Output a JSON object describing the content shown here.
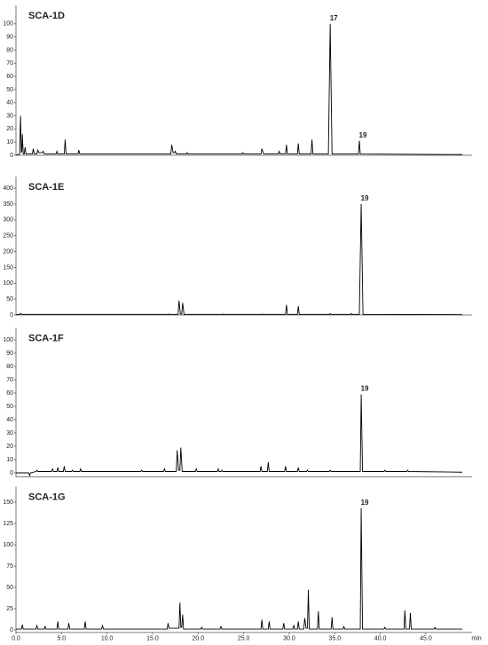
{
  "chart_data": [
    {
      "type": "line",
      "title": "SCA-1D",
      "color": "#000000",
      "xlim": [
        0,
        49
      ],
      "ylim": [
        0,
        110
      ],
      "yticks": [
        0,
        10,
        20,
        30,
        40,
        50,
        60,
        70,
        80,
        90,
        100
      ],
      "x": [
        0,
        0.4,
        0.5,
        0.6,
        0.65,
        0.7,
        0.8,
        0.9,
        1.0,
        1.1,
        1.8,
        1.9,
        2.0,
        2.3,
        2.4,
        2.5,
        2.9,
        3.0,
        3.1,
        4.4,
        4.5,
        4.6,
        5.3,
        5.4,
        5.5,
        6.8,
        6.9,
        7.0,
        17.0,
        17.1,
        17.25,
        17.4,
        17.5,
        17.6,
        18.7,
        18.8,
        18.9,
        24.8,
        24.9,
        25.0,
        26.9,
        27.0,
        27.2,
        28.8,
        28.9,
        29.0,
        29.6,
        29.7,
        29.8,
        30.9,
        31.0,
        31.1,
        32.4,
        32.5,
        32.6,
        34.3,
        34.5,
        34.7,
        37.6,
        37.7,
        37.8,
        49
      ],
      "values": [
        0,
        1,
        30,
        2,
        3,
        16,
        1,
        1,
        6,
        1,
        1,
        5,
        1,
        1,
        4,
        2,
        2,
        3,
        1,
        1,
        3,
        1,
        1,
        12,
        1,
        1,
        4,
        1,
        1,
        8,
        2,
        2,
        3,
        1,
        1,
        2,
        1,
        1,
        2,
        1,
        1,
        5,
        1,
        1,
        3,
        1,
        1,
        8,
        1,
        1,
        9,
        1,
        1,
        12,
        1,
        1,
        100,
        1,
        1,
        11,
        1,
        0.5
      ],
      "annotations": [
        {
          "text": "17",
          "x": 34.5,
          "y": 100
        },
        {
          "text": "19",
          "x": 37.7,
          "y": 11
        }
      ]
    },
    {
      "type": "line",
      "title": "SCA-1E",
      "color": "#000000",
      "xlim": [
        0,
        49
      ],
      "ylim": [
        0,
        420
      ],
      "yticks": [
        0,
        50,
        100,
        150,
        200,
        250,
        300,
        350,
        400
      ],
      "x": [
        0,
        0.4,
        0.5,
        0.6,
        16.7,
        16.8,
        16.9,
        17.8,
        17.9,
        18.05,
        18.2,
        18.3,
        18.45,
        22.7,
        22.8,
        22.9,
        26.9,
        27.0,
        27.1,
        29.6,
        29.7,
        29.8,
        30.9,
        31.0,
        31.1,
        34.4,
        34.5,
        34.6,
        36.7,
        36.8,
        36.9,
        37.7,
        37.9,
        38.1,
        49
      ],
      "values": [
        1,
        2,
        5,
        2,
        2,
        3,
        2,
        2,
        45,
        3,
        3,
        38,
        2,
        2,
        3,
        2,
        2,
        3,
        2,
        2,
        32,
        2,
        2,
        28,
        2,
        2,
        4,
        2,
        2,
        4,
        2,
        2,
        350,
        2,
        1
      ],
      "annotations": [
        {
          "text": "19",
          "x": 37.9,
          "y": 350
        }
      ]
    },
    {
      "type": "line",
      "title": "SCA-1F",
      "color": "#000000",
      "xlim": [
        0,
        49
      ],
      "ylim": [
        -3,
        105
      ],
      "yticks": [
        0,
        10,
        20,
        30,
        40,
        50,
        60,
        70,
        80,
        90,
        100
      ],
      "x": [
        0,
        1.4,
        1.5,
        1.6,
        2.2,
        2.3,
        2.4,
        3.9,
        4.0,
        4.1,
        4.5,
        4.6,
        4.7,
        5.2,
        5.3,
        5.4,
        6.1,
        6.2,
        6.3,
        7.0,
        7.1,
        7.2,
        13.7,
        13.8,
        13.9,
        16.2,
        16.3,
        16.4,
        17.6,
        17.7,
        17.85,
        18.0,
        18.1,
        18.25,
        19.7,
        19.8,
        19.9,
        22.1,
        22.2,
        22.3,
        22.5,
        22.6,
        22.7,
        26.8,
        26.9,
        27.0,
        27.6,
        27.7,
        27.8,
        29.5,
        29.6,
        29.7,
        30.9,
        31.0,
        31.1,
        31.9,
        32.0,
        32.1,
        34.4,
        34.5,
        34.6,
        37.8,
        37.9,
        38.05,
        40.4,
        40.5,
        40.6,
        42.9,
        43.0,
        43.1,
        49
      ],
      "values": [
        0,
        0,
        -2,
        0,
        1,
        2,
        1,
        1,
        3,
        1,
        1,
        4,
        1,
        1,
        5,
        1,
        1,
        2,
        1,
        1,
        3,
        1,
        1,
        2,
        1,
        1,
        3,
        1,
        1,
        17,
        2,
        2,
        19,
        1,
        1,
        3,
        1,
        1,
        3,
        1,
        1,
        2,
        1,
        1,
        5,
        1,
        1,
        8,
        1,
        1,
        5,
        1,
        1,
        4,
        1,
        1,
        2,
        1,
        1,
        2,
        1,
        1,
        59,
        1,
        1,
        2,
        1,
        1,
        2,
        1,
        0.5
      ],
      "annotations": [
        {
          "text": "19",
          "x": 37.9,
          "y": 59
        }
      ]
    },
    {
      "type": "line",
      "title": "SCA-1G",
      "color": "#000000",
      "xlim": [
        0,
        49
      ],
      "ylim": [
        -3,
        162
      ],
      "yticks": [
        0,
        25,
        50,
        75,
        100,
        125,
        150
      ],
      "x": [
        0,
        0.6,
        0.7,
        0.8,
        2.2,
        2.3,
        2.4,
        3.1,
        3.2,
        3.3,
        4.5,
        4.6,
        4.7,
        5.7,
        5.8,
        5.9,
        7.5,
        7.6,
        7.7,
        9.4,
        9.5,
        9.6,
        16.6,
        16.7,
        16.8,
        17.9,
        18.0,
        18.1,
        18.2,
        18.3,
        18.4,
        20.3,
        20.4,
        20.5,
        22.4,
        22.5,
        22.6,
        26.9,
        27.0,
        27.1,
        27.7,
        27.8,
        27.9,
        29.3,
        29.4,
        29.5,
        30.4,
        30.5,
        30.6,
        30.9,
        31.0,
        31.1,
        31.6,
        31.7,
        31.85,
        32.0,
        32.1,
        32.2,
        33.1,
        33.2,
        33.3,
        34.6,
        34.7,
        34.8,
        35.9,
        36.0,
        36.1,
        37.8,
        37.9,
        38.05,
        40.4,
        40.5,
        40.6,
        42.6,
        42.7,
        42.8,
        43.2,
        43.3,
        43.4,
        45.9,
        46.0,
        46.1,
        49
      ],
      "values": [
        1,
        1,
        6,
        1,
        1,
        5,
        1,
        1,
        4,
        1,
        1,
        10,
        1,
        1,
        8,
        1,
        1,
        10,
        1,
        1,
        5,
        1,
        1,
        8,
        2,
        2,
        32,
        3,
        3,
        18,
        1,
        1,
        3,
        1,
        1,
        4,
        1,
        1,
        12,
        1,
        1,
        10,
        1,
        1,
        8,
        1,
        1,
        5,
        1,
        1,
        10,
        1,
        1,
        14,
        2,
        2,
        47,
        1,
        1,
        22,
        1,
        1,
        15,
        1,
        1,
        4,
        1,
        1,
        143,
        1,
        1,
        3,
        1,
        1,
        23,
        1,
        1,
        20,
        1,
        1,
        3,
        1,
        1
      ],
      "xticks": [
        {
          "value": 0,
          "label": "0.0"
        },
        {
          "value": 5,
          "label": "5.0"
        },
        {
          "value": 10,
          "label": "10.0"
        },
        {
          "value": 15,
          "label": "15.0"
        },
        {
          "value": 20,
          "label": "20.0"
        },
        {
          "value": 25,
          "label": "25.0"
        },
        {
          "value": 30,
          "label": "30.0"
        },
        {
          "value": 35,
          "label": "35.0"
        },
        {
          "value": 40,
          "label": "40.0"
        },
        {
          "value": 45,
          "label": "45.0"
        }
      ],
      "x_label": "min",
      "annotations": [
        {
          "text": "19",
          "x": 37.9,
          "y": 143
        }
      ]
    }
  ]
}
